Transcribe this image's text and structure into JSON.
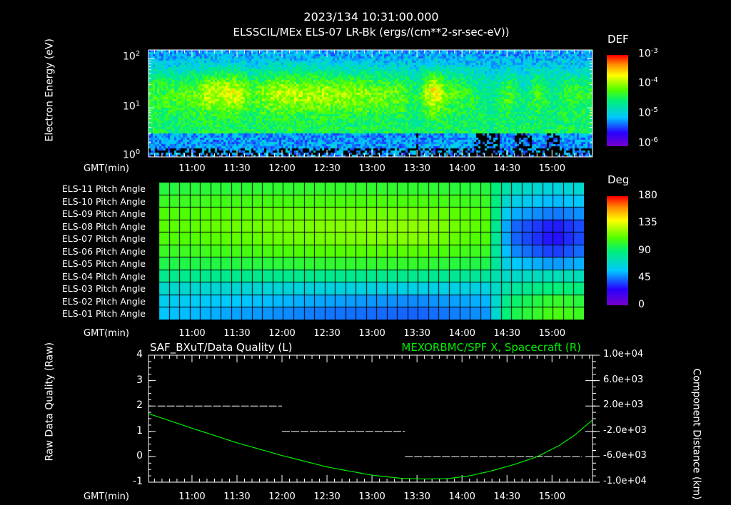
{
  "header": {
    "title": "2023/134 10:31:00.000",
    "subtitle": "ELSSCIL/MEx ELS-07 LR-Bk  (ergs/(cm**2-sr-sec-eV))"
  },
  "time_axis": {
    "label": "GMT(min)",
    "ticks": [
      "11:00",
      "11:30",
      "12:00",
      "12:30",
      "13:00",
      "13:30",
      "14:00",
      "14:30",
      "15:00"
    ]
  },
  "chart_data": [
    {
      "type": "heatmap",
      "name": "spectrogram",
      "ylabel": "Electron Energy (eV)",
      "yscale": "log",
      "ylim": [
        1,
        150
      ],
      "yticks": [
        "10",
        "10",
        "10"
      ],
      "ytick_exponents": [
        "2",
        "1",
        "0"
      ],
      "colorbar": {
        "title": "DEF",
        "labels": [
          "10",
          "10",
          "10",
          "10"
        ],
        "exponents": [
          "-3",
          "-4",
          "-5",
          "-6"
        ],
        "range_log": [
          -6,
          -3
        ]
      },
      "time_range_min": [
        631,
        927
      ],
      "activity_knots_min": [
        631,
        650,
        660,
        670,
        690,
        700,
        715,
        740,
        760,
        780,
        800,
        810,
        815,
        820,
        830,
        840,
        850,
        860,
        870,
        880,
        890,
        900,
        910,
        920,
        927
      ],
      "activity_level": [
        0.5,
        0.55,
        0.6,
        0.9,
        1.0,
        0.55,
        0.9,
        0.85,
        0.8,
        0.7,
        0.6,
        0.3,
        0.8,
        1.1,
        0.6,
        0.5,
        0.3,
        0.1,
        0.6,
        0.1,
        0.55,
        0.2,
        0.5,
        0.4,
        0.5
      ]
    },
    {
      "type": "heatmap",
      "name": "pitch-angle",
      "colorbar": {
        "title": "Deg",
        "labels": [
          "180",
          "135",
          "90",
          "45",
          "0"
        ],
        "range": [
          0,
          180
        ]
      },
      "rows": [
        "ELS-11 Pitch Angle",
        "ELS-10 Pitch Angle",
        "ELS-09 Pitch Angle",
        "ELS-08 Pitch Angle",
        "ELS-07 Pitch Angle",
        "ELS-06 Pitch Angle",
        "ELS-05 Pitch Angle",
        "ELS-04 Pitch Angle",
        "ELS-03 Pitch Angle",
        "ELS-02 Pitch Angle",
        "ELS-01 Pitch Angle"
      ],
      "knots_min": [
        635,
        690,
        750,
        810,
        855,
        870,
        900,
        920
      ],
      "values": [
        [
          100,
          102,
          104,
          103,
          100,
          75,
          65,
          70
        ],
        [
          105,
          108,
          110,
          110,
          105,
          65,
          55,
          60
        ],
        [
          110,
          113,
          116,
          117,
          110,
          55,
          45,
          50
        ],
        [
          112,
          116,
          120,
          122,
          112,
          45,
          30,
          40
        ],
        [
          110,
          114,
          118,
          120,
          110,
          45,
          28,
          40
        ],
        [
          105,
          108,
          112,
          113,
          105,
          50,
          35,
          45
        ],
        [
          98,
          100,
          103,
          104,
          98,
          60,
          50,
          55
        ],
        [
          85,
          85,
          85,
          85,
          82,
          70,
          75,
          75
        ],
        [
          70,
          68,
          66,
          64,
          65,
          80,
          90,
          88
        ],
        [
          62,
          58,
          52,
          48,
          55,
          90,
          105,
          100
        ],
        [
          58,
          52,
          45,
          42,
          50,
          95,
          110,
          105
        ]
      ]
    },
    {
      "type": "line",
      "name": "quality-distance",
      "left_title": "SAF_BXuT/Data Quality (L)",
      "right_title": "MEXORBMC/SPF X, Spacecraft (R)",
      "ylabel_left": "Raw Data Quality (Raw)",
      "ylabel_right": "Component Distance (km)",
      "ylim_left": [
        -1,
        4
      ],
      "yticks_left": [
        "4",
        "3",
        "2",
        "1",
        "0",
        "-1"
      ],
      "ylim_right": [
        -10000,
        10000
      ],
      "yticks_right": [
        "1.0e+04",
        "6.0e+03",
        "2.0e+03",
        "-2.0e+03",
        "-6.0e+03",
        "-1.0e+04"
      ],
      "quality_segments": [
        {
          "start": 637,
          "end": 720,
          "value": 2
        },
        {
          "start": 720,
          "end": 802,
          "value": 1
        },
        {
          "start": 802,
          "end": 920,
          "value": 0
        }
      ],
      "distance_x": [
        631,
        660,
        690,
        720,
        750,
        780,
        800,
        815,
        830,
        845,
        860,
        875,
        890,
        905,
        915,
        927
      ],
      "distance_y": [
        800,
        -1500,
        -3800,
        -5800,
        -7600,
        -8900,
        -9400,
        -9500,
        -9450,
        -9000,
        -8200,
        -7200,
        -6000,
        -4200,
        -2600,
        -200
      ],
      "colors": {
        "quality": "#ffffff",
        "distance": "#00ee00"
      }
    }
  ]
}
